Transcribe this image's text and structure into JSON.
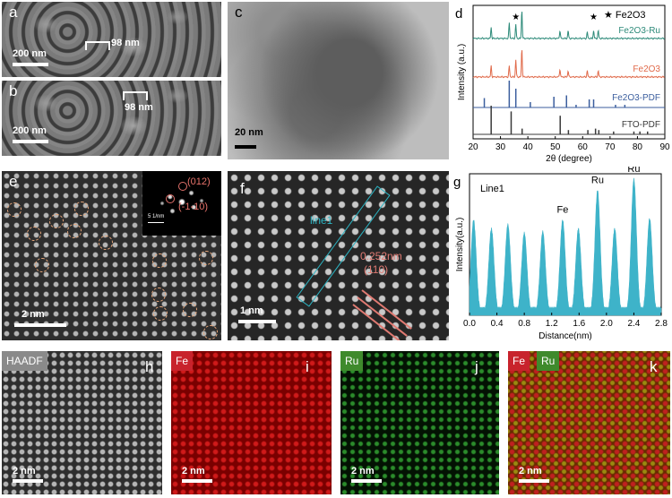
{
  "panels": {
    "a": {
      "label": "a",
      "scale_bar": "200 nm",
      "measure": "98 nm"
    },
    "b": {
      "label": "b",
      "scale_bar": "200 nm",
      "measure": "98 nm"
    },
    "c": {
      "label": "c",
      "scale_bar": "20 nm"
    },
    "e": {
      "label": "e",
      "scale_bar": "2 nm",
      "fft_plane1": "(012)",
      "fft_plane2": "(-1-10)",
      "fft_scale": "5 1/nm"
    },
    "f": {
      "label": "f",
      "scale_bar": "1 nm",
      "line_label": "line1",
      "d_spacing": "0.252nm",
      "plane": "(110)"
    },
    "h": {
      "label": "h",
      "tag": "HAADF",
      "scale_bar": "2 nm"
    },
    "i": {
      "label": "i",
      "tag": "Fe",
      "scale_bar": "2 nm"
    },
    "j": {
      "label": "j",
      "tag": "Ru",
      "scale_bar": "2 nm"
    },
    "k": {
      "label": "k",
      "tag1": "Fe",
      "tag2": "Ru",
      "scale_bar": "2 nm"
    }
  },
  "colors": {
    "fe_tag": "#c8232c",
    "ru_tag": "#3f8a2c",
    "hrtem_accent": "#2bb5c4",
    "annot": "#e07a72"
  },
  "chart_data": [
    {
      "panel": "d",
      "type": "line",
      "xlabel": "2θ (degree)",
      "ylabel": "Intensity (a.u.)",
      "xlim": [
        20,
        90
      ],
      "xticks": [
        20,
        30,
        40,
        50,
        60,
        70,
        80,
        90
      ],
      "legend": "★ Fe2O3",
      "series": [
        {
          "name": "Fe2O3-Ru",
          "color": "#2e8b7a",
          "peaks": [
            [
              26.6,
              0.35
            ],
            [
              33.2,
              0.5
            ],
            [
              35.6,
              0.45
            ],
            [
              37.8,
              0.9
            ],
            [
              51.7,
              0.25
            ],
            [
              54.7,
              0.25
            ],
            [
              61.7,
              0.2
            ],
            [
              64.0,
              0.25
            ],
            [
              65.7,
              0.25
            ]
          ],
          "marked": [
            35.6,
            64.0
          ]
        },
        {
          "name": "Fe2O3",
          "color": "#e06a4a",
          "peaks": [
            [
              26.6,
              0.35
            ],
            [
              33.2,
              0.35
            ],
            [
              35.6,
              0.55
            ],
            [
              37.8,
              0.9
            ],
            [
              51.7,
              0.25
            ],
            [
              54.7,
              0.2
            ],
            [
              61.7,
              0.2
            ],
            [
              65.7,
              0.2
            ]
          ]
        },
        {
          "name": "Fe2O3-PDF",
          "color": "#3b5e9e",
          "peaks": [
            [
              24.1,
              0.35
            ],
            [
              33.2,
              1.0
            ],
            [
              35.6,
              0.7
            ],
            [
              40.9,
              0.2
            ],
            [
              49.5,
              0.4
            ],
            [
              54.1,
              0.45
            ],
            [
              57.6,
              0.1
            ],
            [
              62.4,
              0.3
            ],
            [
              64.0,
              0.3
            ],
            [
              72.0,
              0.1
            ],
            [
              75.4,
              0.1
            ]
          ]
        },
        {
          "name": "FTO-PDF",
          "color": "#3a3a3a",
          "peaks": [
            [
              26.6,
              1.0
            ],
            [
              33.9,
              0.8
            ],
            [
              37.9,
              0.2
            ],
            [
              51.8,
              0.65
            ],
            [
              54.8,
              0.15
            ],
            [
              61.9,
              0.15
            ],
            [
              64.7,
              0.2
            ],
            [
              65.9,
              0.15
            ],
            [
              71.3,
              0.1
            ],
            [
              78.7,
              0.1
            ],
            [
              80.9,
              0.1
            ],
            [
              83.7,
              0.1
            ]
          ]
        }
      ]
    },
    {
      "panel": "g",
      "type": "area",
      "title": "Line1",
      "xlabel": "Distance(nm)",
      "ylabel": "Intensity(a.u.)",
      "xlim": [
        0.0,
        2.8
      ],
      "xticks": [
        0.0,
        0.4,
        0.8,
        1.2,
        1.6,
        2.0,
        2.4,
        2.8
      ],
      "color": "#3eb3c9",
      "peak_x": [
        0.06,
        0.32,
        0.56,
        0.8,
        1.07,
        1.36,
        1.59,
        1.87,
        2.12,
        2.4,
        2.63
      ],
      "peak_h": [
        0.66,
        0.6,
        0.63,
        0.57,
        0.58,
        0.66,
        0.6,
        0.87,
        0.6,
        0.95,
        0.67
      ],
      "annotations": [
        {
          "x": 1.36,
          "text": "Fe"
        },
        {
          "x": 1.87,
          "text": "Ru"
        },
        {
          "x": 2.4,
          "text": "Ru"
        }
      ]
    }
  ]
}
